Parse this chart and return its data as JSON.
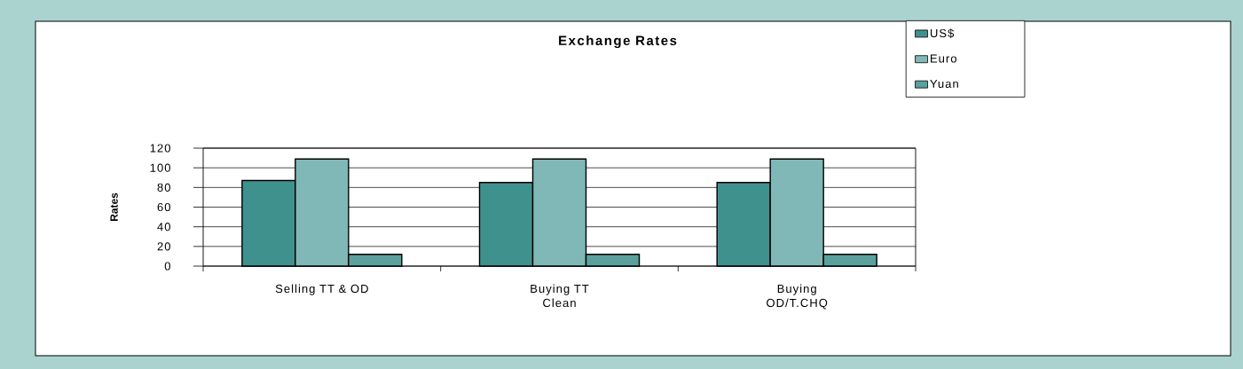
{
  "chart_data": {
    "type": "bar",
    "title": "Exchange Rates",
    "ylabel": "Rates",
    "categories": [
      "Selling TT & OD",
      "Buying TT Clean",
      "Buying OD/T.CHQ"
    ],
    "series": [
      {
        "name": "US$",
        "color": "#3f918e",
        "values": [
          87,
          85,
          85
        ]
      },
      {
        "name": "Euro",
        "color": "#7fb8b6",
        "values": [
          109,
          109,
          109
        ]
      },
      {
        "name": "Yuan",
        "color": "#5aa19e",
        "values": [
          12,
          12,
          12
        ]
      }
    ],
    "ylim": [
      0,
      120
    ],
    "yticks": [
      0,
      20,
      40,
      60,
      80,
      100,
      120
    ],
    "grid": "y",
    "legend": "top right"
  }
}
